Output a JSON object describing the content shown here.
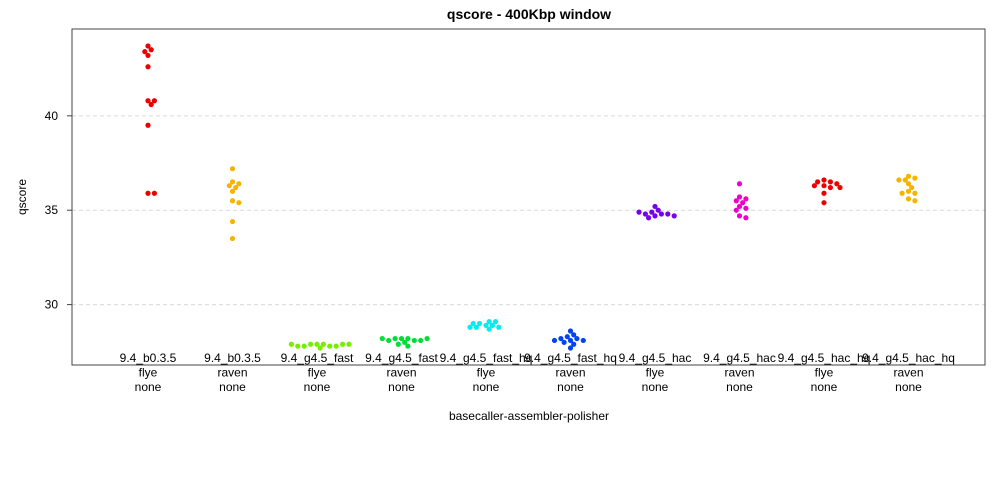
{
  "chart_data": {
    "type": "scatter",
    "title": "qscore - 400Kbp window",
    "xlabel": "basecaller-assembler-polisher",
    "ylabel": "qscore",
    "ylim": [
      26.8,
      44.6
    ],
    "yticks": [
      30,
      35,
      40
    ],
    "grid": true,
    "tick_label_every": 2,
    "categories": [
      {
        "label": [
          "9.4_b0.3.5",
          "flye",
          "none"
        ],
        "color": "#ee0000",
        "values": [
          43.7,
          43.5,
          43.4,
          43.2,
          42.6,
          40.8,
          40.8,
          40.6,
          39.5,
          35.9,
          35.9
        ]
      },
      {
        "label": [
          "9.4_b0.3.5",
          "raven",
          "none"
        ],
        "color": "#f5b400",
        "values": [
          37.2,
          36.5,
          36.4,
          36.3,
          36.2,
          36.0,
          35.5,
          35.4,
          34.4,
          33.5
        ]
      },
      {
        "label": [
          "9.4_g4.5_fast",
          "flye",
          "none"
        ],
        "color": "#77ee00",
        "values": [
          27.9,
          27.9,
          27.9,
          27.8,
          27.8,
          27.8,
          27.8,
          27.9,
          27.9,
          27.9,
          27.7
        ]
      },
      {
        "label": [
          "9.4_g4.5_fast",
          "raven",
          "none"
        ],
        "color": "#00dd33",
        "values": [
          28.2,
          28.2,
          28.2,
          28.1,
          28.1,
          28.1,
          28.2,
          28.2,
          28.0,
          27.9,
          27.8
        ]
      },
      {
        "label": [
          "9.4_g4.5_fast_hq",
          "flye",
          "none"
        ],
        "color": "#00eeee",
        "values": [
          28.9,
          28.9,
          29.0,
          28.8,
          28.8,
          28.7,
          28.8,
          29.0,
          29.1,
          29.1
        ]
      },
      {
        "label": [
          "9.4_g4.5_fast_hq",
          "raven",
          "none"
        ],
        "color": "#0044ee",
        "values": [
          28.6,
          28.4,
          28.3,
          28.2,
          28.2,
          28.1,
          28.1,
          28.1,
          28.0,
          27.9,
          27.7
        ]
      },
      {
        "label": [
          "9.4_g4.5_hac",
          "flye",
          "none"
        ],
        "color": "#7700ee",
        "values": [
          35.2,
          35.0,
          34.9,
          34.8,
          34.8,
          34.7,
          34.8,
          34.9,
          34.7,
          34.6
        ]
      },
      {
        "label": [
          "9.4_g4.5_hac",
          "raven",
          "none"
        ],
        "color": "#ee00cc",
        "values": [
          36.4,
          35.7,
          35.6,
          35.5,
          35.4,
          35.2,
          35.1,
          35.0,
          34.7,
          34.6
        ]
      },
      {
        "label": [
          "9.4_g4.5_hac_hq",
          "flye",
          "none"
        ],
        "color": "#ee0000",
        "values": [
          36.6,
          36.5,
          36.5,
          36.4,
          36.3,
          36.3,
          36.2,
          36.2,
          35.9,
          35.4
        ]
      },
      {
        "label": [
          "9.4_g4.5_hac_hq",
          "raven",
          "none"
        ],
        "color": "#f5b400",
        "values": [
          36.8,
          36.7,
          36.6,
          36.6,
          36.4,
          36.2,
          36.0,
          35.9,
          35.9,
          35.6,
          35.5
        ]
      }
    ]
  }
}
